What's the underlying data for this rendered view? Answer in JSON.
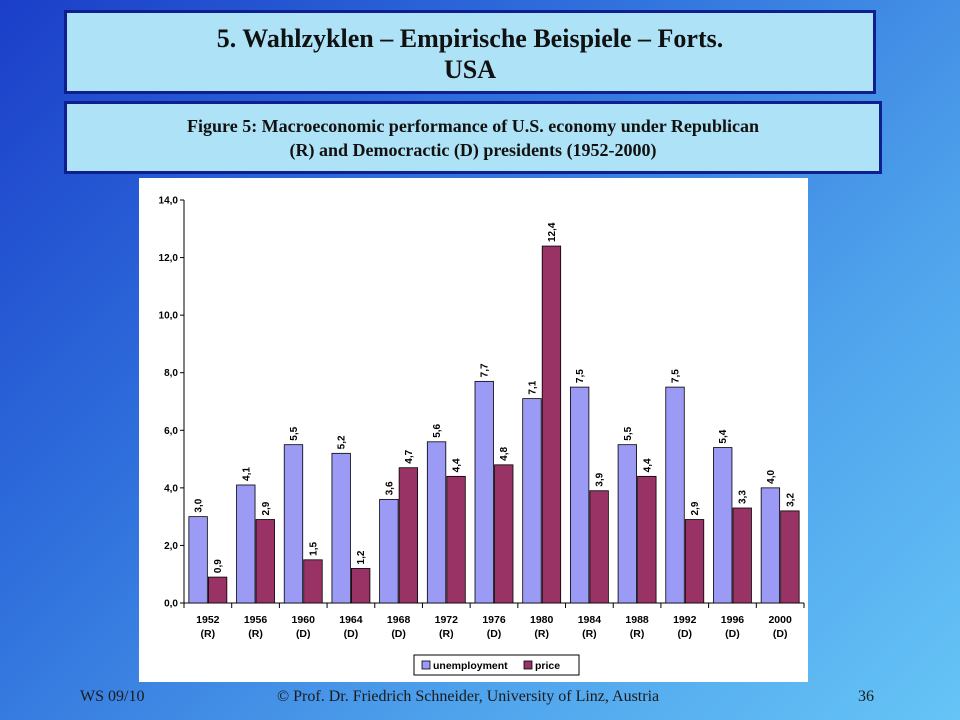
{
  "slide": {
    "title_line1": "5. Wahlzyklen – Empirische Beispiele – Forts.",
    "title_line2": "USA",
    "figure_line1": "Figure 5: Macroeconomic performance of U.S. economy under Republican",
    "figure_line2": "(R) and Democractic (D) presidents (1952-2000)"
  },
  "footer": {
    "left": "WS 09/10",
    "center": "© Prof. Dr. Friedrich Schneider, University of Linz, Austria",
    "page": "36"
  },
  "colors": {
    "unemployment": "#9b9bf5",
    "price": "#993366"
  },
  "chart_data": {
    "type": "bar",
    "categories": [
      "1952",
      "1956",
      "1960",
      "1964",
      "1968",
      "1972",
      "1976",
      "1980",
      "1984",
      "1988",
      "1992",
      "1996",
      "2000"
    ],
    "party": [
      "(R)",
      "(R)",
      "(D)",
      "(D)",
      "(D)",
      "(R)",
      "(D)",
      "(R)",
      "(R)",
      "(R)",
      "(D)",
      "(D)",
      "(D)"
    ],
    "series": [
      {
        "name": "unemployment",
        "values": [
          3.0,
          4.1,
          5.5,
          5.2,
          3.6,
          5.6,
          7.7,
          7.1,
          7.5,
          5.5,
          7.5,
          5.4,
          4.0
        ],
        "labels": [
          "3,0",
          "4,1",
          "5,5",
          "5,2",
          "3,6",
          "5,6",
          "7,7",
          "7,1",
          "7,5",
          "5,5",
          "7,5",
          "5,4",
          "4,0"
        ]
      },
      {
        "name": "price",
        "values": [
          0.9,
          2.9,
          1.5,
          1.2,
          4.7,
          4.4,
          4.8,
          12.4,
          3.9,
          4.4,
          2.9,
          3.3,
          3.2
        ],
        "labels": [
          "0,9",
          "2,9",
          "1,5",
          "1,2",
          "4,7",
          "4,4",
          "4,8",
          "12,4",
          "3,9",
          "4,4",
          "2,9",
          "3,3",
          "3,2"
        ]
      }
    ],
    "yticks": [
      "0,0",
      "2,0",
      "4,0",
      "6,0",
      "8,0",
      "10,0",
      "12,0",
      "14,0"
    ],
    "ylim": [
      0,
      14
    ],
    "grid": false,
    "legend": "bottom"
  }
}
